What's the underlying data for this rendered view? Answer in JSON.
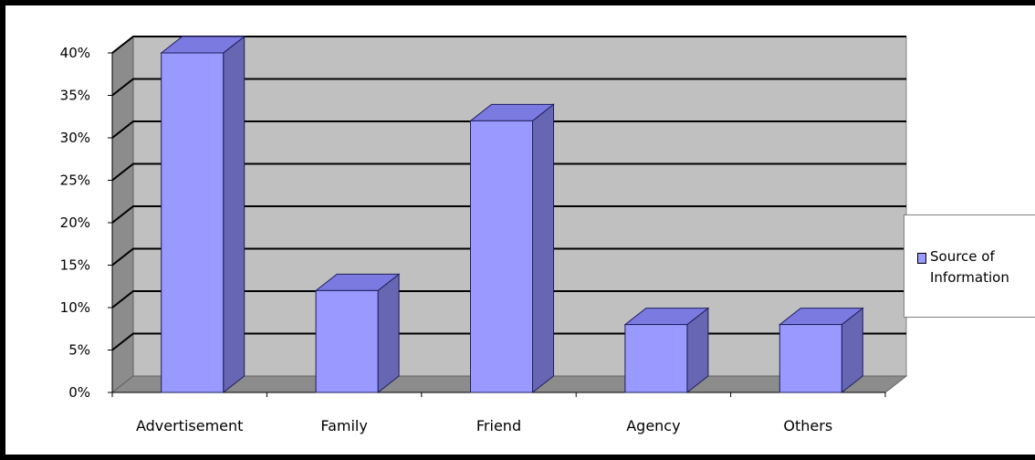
{
  "chart_data": {
    "type": "bar",
    "categories": [
      "Advertisement",
      "Family",
      "Friend",
      "Agency",
      "Others"
    ],
    "series": [
      {
        "name": "Source of\nInformation",
        "values": [
          40,
          12,
          32,
          8,
          8
        ]
      }
    ],
    "ylim": [
      0,
      40
    ],
    "yticks": [
      "0%",
      "5%",
      "10%",
      "15%",
      "20%",
      "25%",
      "30%",
      "35%",
      "40%"
    ],
    "grid": true,
    "legend_position": "right",
    "style": "3d-column",
    "colors": {
      "bar_front": "#9999ff",
      "bar_side": "#6666b3",
      "bar_top": "#7a7ae0",
      "bar_edge": "#1f1f5c",
      "wall": "#c0c0c0",
      "side_wall": "#8c8c8c",
      "floor": "#8c8c8c",
      "grid": "#000000"
    }
  }
}
